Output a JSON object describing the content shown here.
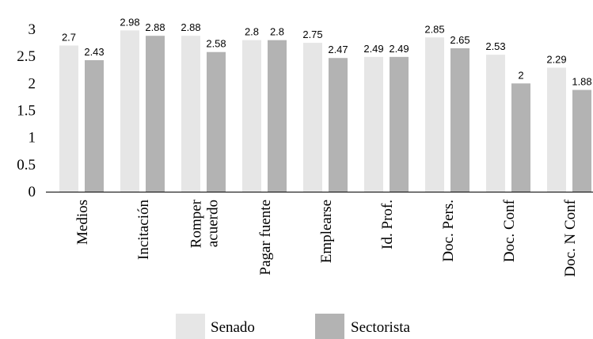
{
  "chart_data": {
    "type": "bar",
    "categories": [
      "Medios",
      "Incitación",
      [
        "Romper",
        "acuerdo"
      ],
      "Pagar fuente",
      "Emplearse",
      "Id. Prof.",
      "Doc. Pers.",
      "Doc. Conf",
      "Doc. N Conf"
    ],
    "series": [
      {
        "name": "Senado",
        "color": "#e6e6e6",
        "values": [
          2.7,
          2.98,
          2.88,
          2.8,
          2.75,
          2.49,
          2.85,
          2.53,
          2.29
        ],
        "value_labels": [
          "2.7",
          "2.98",
          "2.88",
          "2.8",
          "2.75",
          "2.49",
          "2.85",
          "2.53",
          "2.29"
        ]
      },
      {
        "name": "Sectorista",
        "color": "#b3b3b3",
        "values": [
          2.43,
          2.88,
          2.58,
          2.8,
          2.47,
          2.49,
          2.65,
          2.0,
          1.88
        ],
        "value_labels": [
          "2.43",
          "2.88",
          "2.58",
          "2.8",
          "2.47",
          "2.49",
          "2.65",
          "2",
          "1.88"
        ]
      }
    ],
    "ylim": [
      0,
      3
    ],
    "yticks": [
      "0",
      "0.5",
      "1",
      "1.5",
      "2",
      "2.5",
      "3"
    ],
    "title": "",
    "xlabel": "",
    "ylabel": "",
    "grid": false,
    "legend_position": "bottom-center"
  }
}
